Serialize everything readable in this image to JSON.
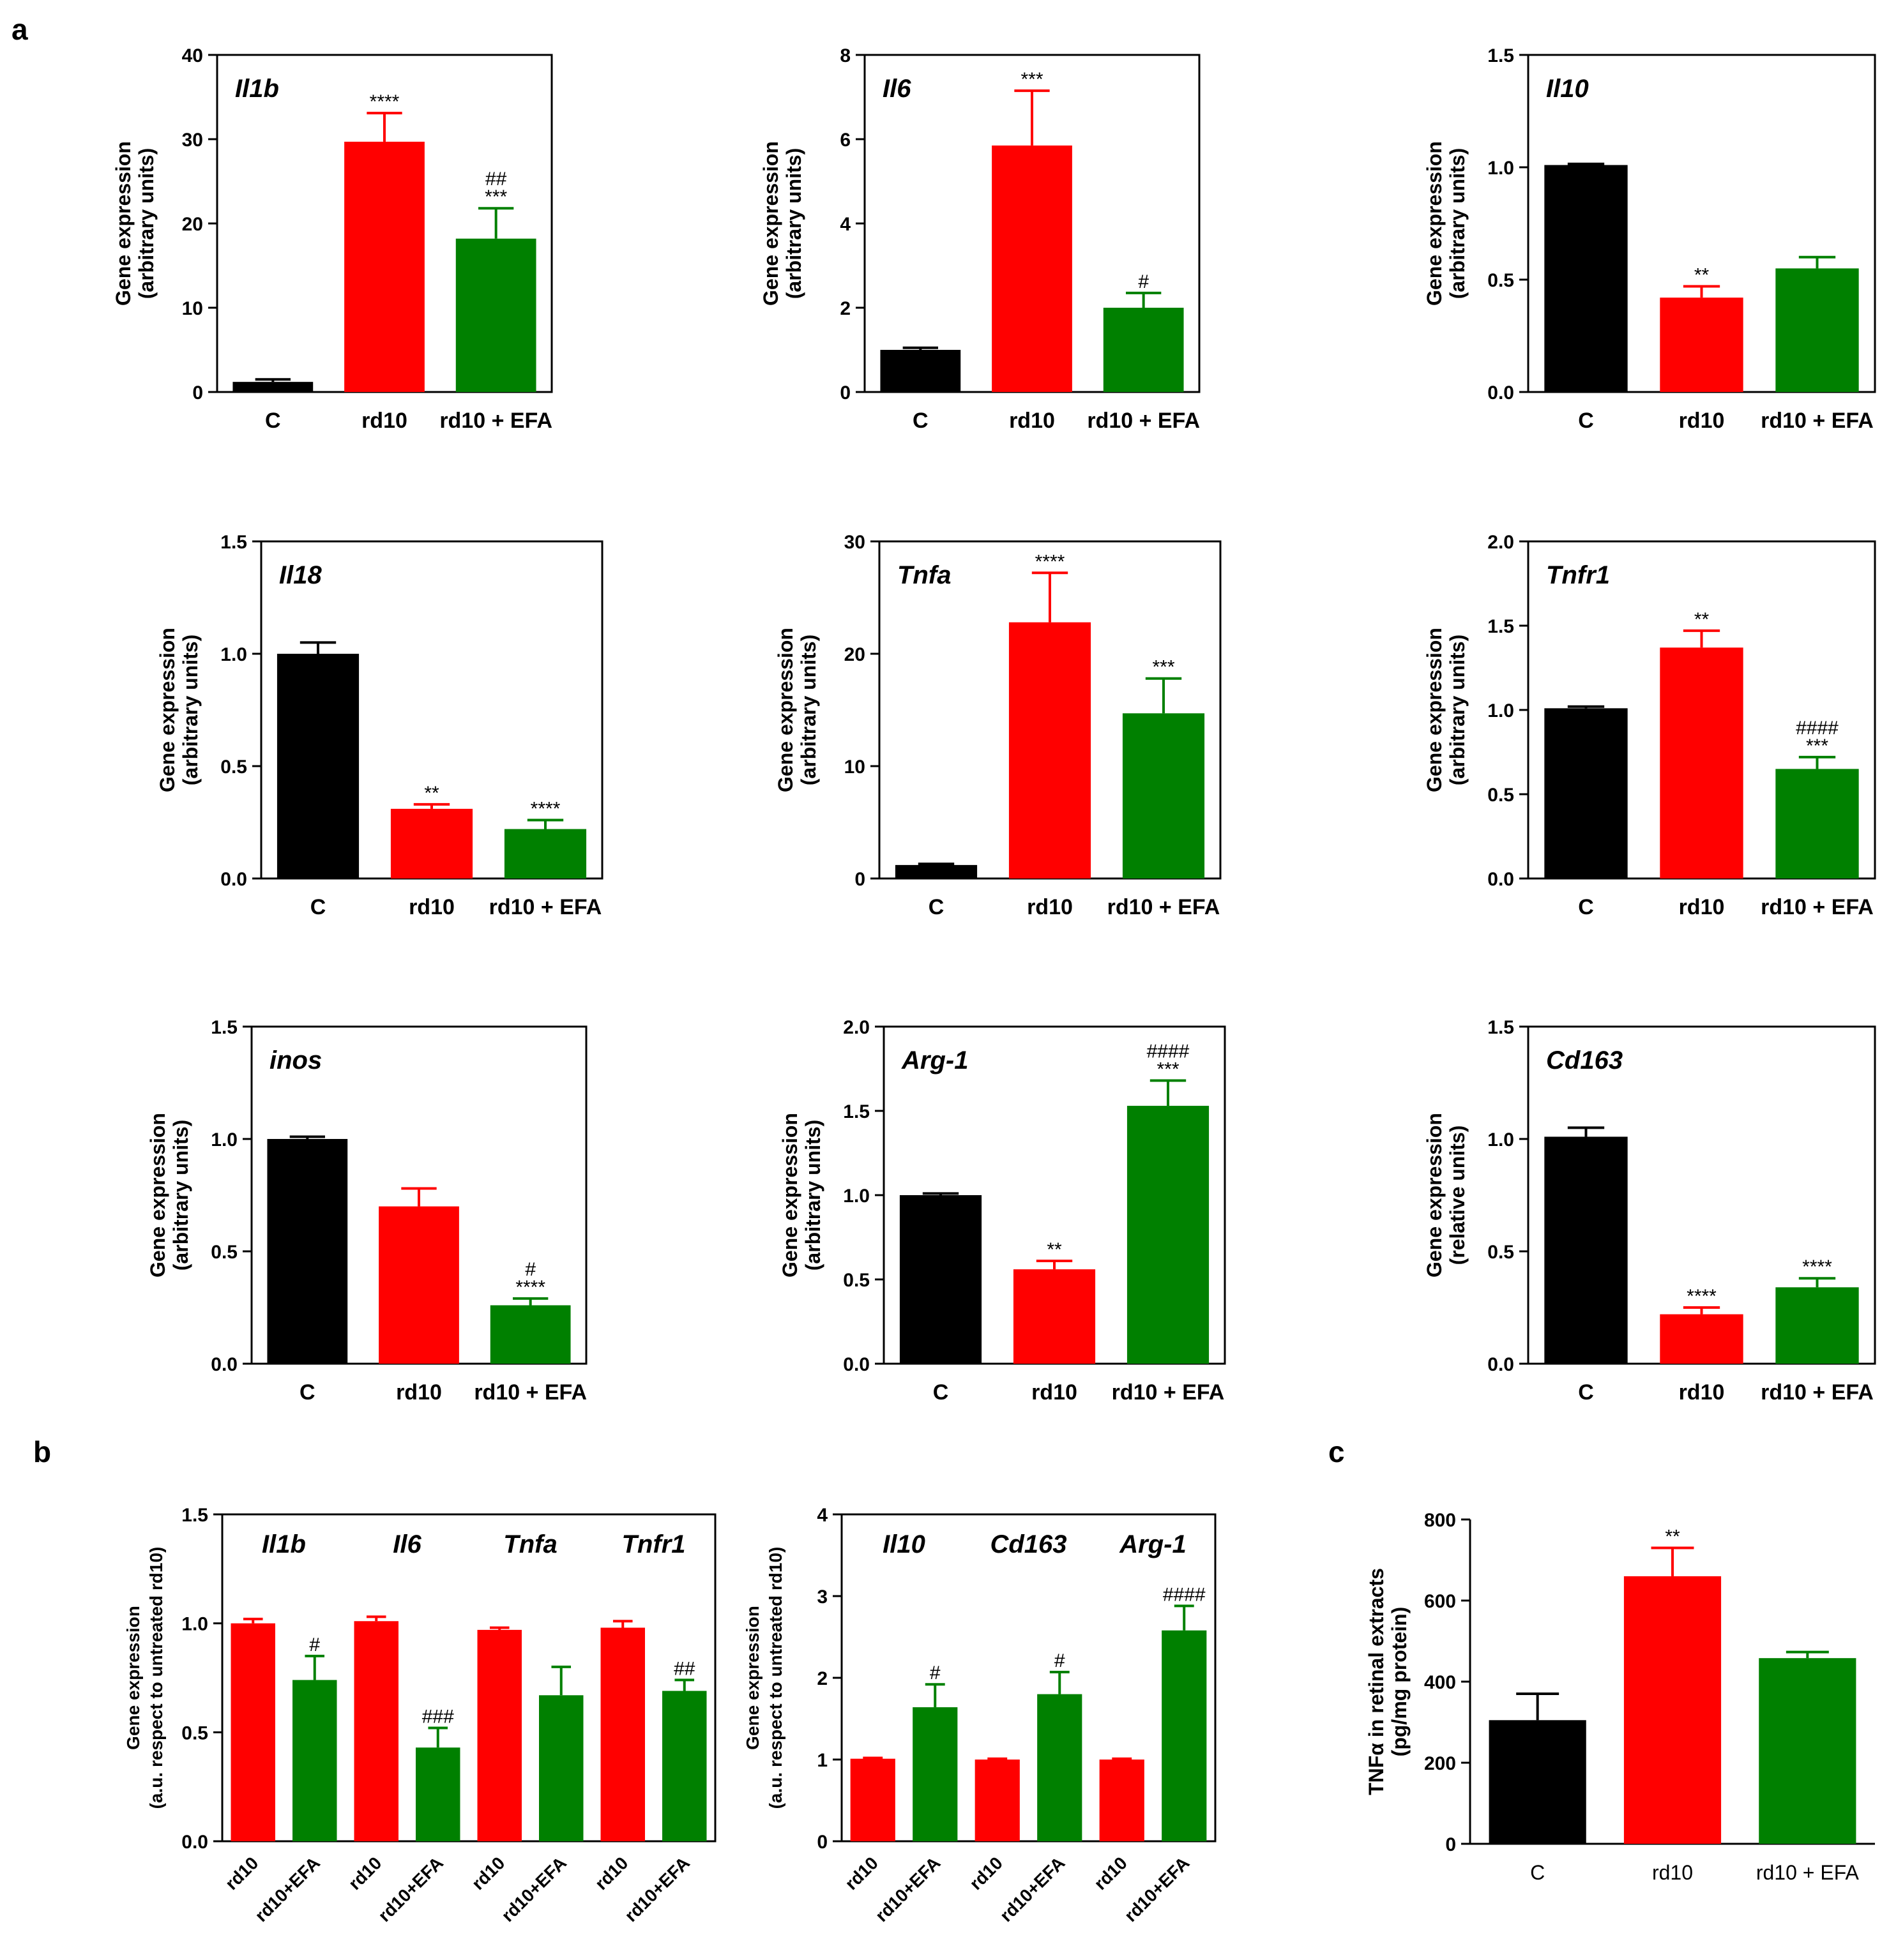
{
  "panel_letters": [
    "a",
    "b",
    "c"
  ],
  "colors": {
    "C": "#000000",
    "rd10": "#ff0000",
    "EFA": "#008000"
  },
  "chart_data": [
    {
      "type": "bar",
      "panel": "a",
      "gene": "Il1b",
      "categories": [
        "C",
        "rd10",
        "rd10 + EFA"
      ],
      "values": [
        1.2,
        29.7,
        18.2
      ],
      "errors": [
        0.3,
        3.4,
        3.6
      ],
      "colors": [
        "C",
        "rd10",
        "EFA"
      ],
      "annotations": [
        "",
        "****",
        "##\n***"
      ],
      "ylabel": [
        "Gene expression",
        "(arbitrary units)"
      ],
      "ylim": [
        0,
        40
      ],
      "yticks": [
        "0",
        "10",
        "20",
        "30",
        "40"
      ]
    },
    {
      "type": "bar",
      "panel": "a",
      "gene": "Il6",
      "categories": [
        "C",
        "rd10",
        "rd10 + EFA"
      ],
      "values": [
        1.0,
        5.85,
        2.0
      ],
      "errors": [
        0.05,
        1.3,
        0.35
      ],
      "colors": [
        "C",
        "rd10",
        "EFA"
      ],
      "annotations": [
        "",
        "***",
        "#"
      ],
      "ylabel": [
        "Gene expression",
        "(arbitrary units)"
      ],
      "ylim": [
        0,
        8
      ],
      "yticks": [
        "0",
        "2",
        "4",
        "6",
        "8"
      ]
    },
    {
      "type": "bar",
      "panel": "a",
      "gene": "Il10",
      "categories": [
        "C",
        "rd10",
        "rd10 + EFA"
      ],
      "values": [
        1.01,
        0.42,
        0.55
      ],
      "errors": [
        0.005,
        0.05,
        0.05
      ],
      "colors": [
        "C",
        "rd10",
        "EFA"
      ],
      "annotations": [
        "",
        "**",
        ""
      ],
      "ylabel": [
        "Gene expression",
        "(arbitrary units)"
      ],
      "ylim": [
        0,
        1.5
      ],
      "yticks": [
        "0.0",
        "0.5",
        "1.0",
        "1.5"
      ]
    },
    {
      "type": "bar",
      "panel": "a",
      "gene": "Il18",
      "categories": [
        "C",
        "rd10",
        "rd10 + EFA"
      ],
      "values": [
        1.0,
        0.31,
        0.22
      ],
      "errors": [
        0.05,
        0.02,
        0.04
      ],
      "colors": [
        "C",
        "rd10",
        "EFA"
      ],
      "annotations": [
        "",
        "**",
        "****"
      ],
      "ylabel": [
        "Gene expression",
        "(arbitrary units)"
      ],
      "ylim": [
        0,
        1.5
      ],
      "yticks": [
        "0.0",
        "0.5",
        "1.0",
        "1.5"
      ]
    },
    {
      "type": "bar",
      "panel": "a",
      "gene": "Tnfa",
      "categories": [
        "C",
        "rd10",
        "rd10 + EFA"
      ],
      "values": [
        1.2,
        22.8,
        14.7
      ],
      "errors": [
        0.1,
        4.4,
        3.1
      ],
      "colors": [
        "C",
        "rd10",
        "EFA"
      ],
      "annotations": [
        "",
        "****",
        "***"
      ],
      "ylabel": [
        "Gene expression",
        "(arbitrary units)"
      ],
      "ylim": [
        0,
        30
      ],
      "yticks": [
        "0",
        "10",
        "20",
        "30"
      ]
    },
    {
      "type": "bar",
      "panel": "a",
      "gene": "Tnfr1",
      "categories": [
        "C",
        "rd10",
        "rd10 + EFA"
      ],
      "values": [
        1.01,
        1.37,
        0.65
      ],
      "errors": [
        0.01,
        0.1,
        0.07
      ],
      "colors": [
        "C",
        "rd10",
        "EFA"
      ],
      "annotations": [
        "",
        "**",
        "####\n***"
      ],
      "ylabel": [
        "Gene expression",
        "(arbitrary units)"
      ],
      "ylim": [
        0,
        2.0
      ],
      "yticks": [
        "0.0",
        "0.5",
        "1.0",
        "1.5",
        "2.0"
      ]
    },
    {
      "type": "bar",
      "panel": "a",
      "gene": "inos",
      "categories": [
        "C",
        "rd10",
        "rd10 + EFA"
      ],
      "values": [
        1.0,
        0.7,
        0.26
      ],
      "errors": [
        0.01,
        0.08,
        0.03
      ],
      "colors": [
        "C",
        "rd10",
        "EFA"
      ],
      "annotations": [
        "",
        "",
        "#\n****"
      ],
      "ylabel": [
        "Gene expression",
        "(arbitrary units)"
      ],
      "ylim": [
        0,
        1.5
      ],
      "yticks": [
        "0.0",
        "0.5",
        "1.0",
        "1.5"
      ]
    },
    {
      "type": "bar",
      "panel": "a",
      "gene": "Arg-1",
      "categories": [
        "C",
        "rd10",
        "rd10 + EFA"
      ],
      "values": [
        1.0,
        0.56,
        1.53
      ],
      "errors": [
        0.01,
        0.05,
        0.15
      ],
      "colors": [
        "C",
        "rd10",
        "EFA"
      ],
      "annotations": [
        "",
        "**",
        "####\n***"
      ],
      "ylabel": [
        "Gene expression",
        "(arbitrary units)"
      ],
      "ylim": [
        0,
        2.0
      ],
      "yticks": [
        "0.0",
        "0.5",
        "1.0",
        "1.5",
        "2.0"
      ]
    },
    {
      "type": "bar",
      "panel": "a",
      "gene": "Cd163",
      "categories": [
        "C",
        "rd10",
        "rd10 + EFA"
      ],
      "values": [
        1.01,
        0.22,
        0.34
      ],
      "errors": [
        0.04,
        0.03,
        0.04
      ],
      "colors": [
        "C",
        "rd10",
        "EFA"
      ],
      "annotations": [
        "",
        "****",
        "****"
      ],
      "ylabel": [
        "Gene expression",
        "(relative units)"
      ],
      "ylim": [
        0,
        1.5
      ],
      "yticks": [
        "0.0",
        "0.5",
        "1.0",
        "1.5"
      ]
    },
    {
      "type": "bar",
      "panel": "b",
      "group_labels": [
        "Il1b",
        "Il6",
        "Tnfa",
        "Tnfr1"
      ],
      "categories": [
        "rd10",
        "rd10+EFA",
        "rd10",
        "rd10+EFA",
        "rd10",
        "rd10+EFA",
        "rd10",
        "rd10+EFA"
      ],
      "values": [
        1.0,
        0.74,
        1.01,
        0.43,
        0.97,
        0.67,
        0.98,
        0.69
      ],
      "errors": [
        0.02,
        0.11,
        0.02,
        0.09,
        0.01,
        0.13,
        0.03,
        0.05
      ],
      "colors": [
        "rd10",
        "EFA",
        "rd10",
        "EFA",
        "rd10",
        "EFA",
        "rd10",
        "EFA"
      ],
      "annotations": [
        "",
        "#",
        "",
        "###",
        "",
        "",
        "",
        "##"
      ],
      "ylabel": [
        "Gene expression",
        "(a.u. respect to untreated rd10)"
      ],
      "ylim": [
        0,
        1.5
      ],
      "yticks": [
        "0.0",
        "0.5",
        "1.0",
        "1.5"
      ]
    },
    {
      "type": "bar",
      "panel": "b",
      "group_labels": [
        "Il10",
        "Cd163",
        "Arg-1"
      ],
      "categories": [
        "rd10",
        "rd10+EFA",
        "rd10",
        "rd10+EFA",
        "rd10",
        "rd10+EFA"
      ],
      "values": [
        1.01,
        1.64,
        1.0,
        1.8,
        1.0,
        2.58
      ],
      "errors": [
        0.01,
        0.28,
        0.01,
        0.27,
        0.01,
        0.3
      ],
      "colors": [
        "rd10",
        "EFA",
        "rd10",
        "EFA",
        "rd10",
        "EFA"
      ],
      "annotations": [
        "",
        "#",
        "",
        "#",
        "",
        "####"
      ],
      "ylabel": [
        "Gene expression",
        "(a.u. respect to untreated rd10)"
      ],
      "ylim": [
        0,
        4
      ],
      "yticks": [
        "0",
        "1",
        "2",
        "3",
        "4"
      ]
    },
    {
      "type": "bar",
      "panel": "c",
      "categories": [
        "C",
        "rd10",
        "rd10 + EFA"
      ],
      "values": [
        305,
        660,
        458
      ],
      "errors": [
        65,
        70,
        15
      ],
      "colors": [
        "C",
        "rd10",
        "EFA"
      ],
      "annotations": [
        "",
        "**",
        ""
      ],
      "ylabel": [
        "TNFα in retinal extracts",
        "(pg/mg protein)"
      ],
      "ylim": [
        0,
        800
      ],
      "yticks": [
        "0",
        "200",
        "400",
        "600",
        "800"
      ]
    }
  ]
}
